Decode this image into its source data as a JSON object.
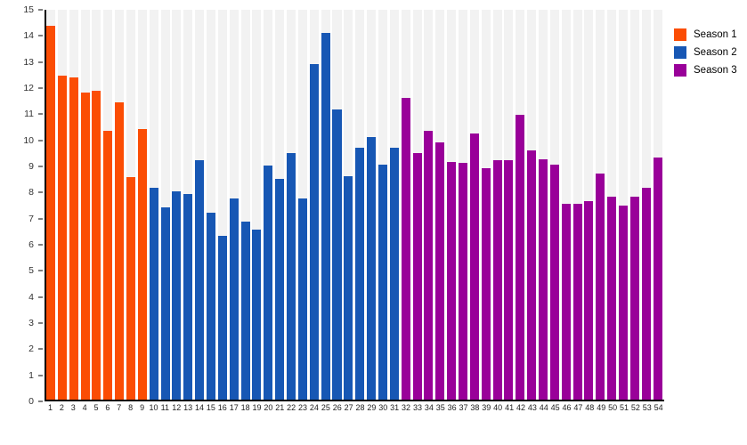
{
  "chart_data": {
    "type": "bar",
    "title": "",
    "xlabel": "",
    "ylabel": "",
    "ylim": [
      0,
      15
    ],
    "ytick_step": 1,
    "yticks": [
      0,
      1,
      2,
      3,
      4,
      5,
      6,
      7,
      8,
      9,
      10,
      11,
      12,
      13,
      14,
      15
    ],
    "grid": false,
    "plot_background": "striped-columns",
    "stripe_color": "#f2f2f2",
    "axis_color": "#000000",
    "tick_text_color": "#333333",
    "categories": [
      1,
      2,
      3,
      4,
      5,
      6,
      7,
      8,
      9,
      10,
      11,
      12,
      13,
      14,
      15,
      16,
      17,
      18,
      19,
      20,
      21,
      22,
      23,
      24,
      25,
      26,
      27,
      28,
      29,
      30,
      31,
      32,
      33,
      34,
      35,
      36,
      37,
      38,
      39,
      40,
      41,
      42,
      43,
      44,
      45,
      46,
      47,
      48,
      49,
      50,
      51,
      52,
      53,
      54
    ],
    "series": [
      {
        "name": "Season 1",
        "color": "#fb4d04",
        "x_start": 1,
        "values": [
          14.4,
          12.45,
          12.4,
          11.8,
          11.9,
          10.35,
          11.45,
          8.55,
          10.4
        ]
      },
      {
        "name": "Season 2",
        "color": "#1757b4",
        "x_start": 10,
        "values": [
          8.15,
          7.4,
          8.0,
          7.9,
          9.2,
          7.2,
          6.3,
          7.75,
          6.85,
          6.55,
          9.0,
          8.5,
          9.5,
          7.75,
          12.9,
          14.1,
          11.15,
          8.6,
          9.7,
          10.1,
          9.05,
          9.7
        ]
      },
      {
        "name": "Season 3",
        "color": "#990099",
        "x_start": 32,
        "values": [
          11.6,
          9.5,
          10.35,
          9.9,
          9.15,
          9.1,
          10.25,
          8.9,
          9.2,
          9.2,
          10.95,
          9.6,
          9.25,
          9.05,
          7.55,
          7.55,
          7.65,
          8.7,
          7.8,
          7.45,
          7.8,
          8.15,
          9.3
        ]
      }
    ],
    "legend": {
      "position": "top-right",
      "entries": [
        "Season 1",
        "Season 2",
        "Season 3"
      ]
    }
  }
}
